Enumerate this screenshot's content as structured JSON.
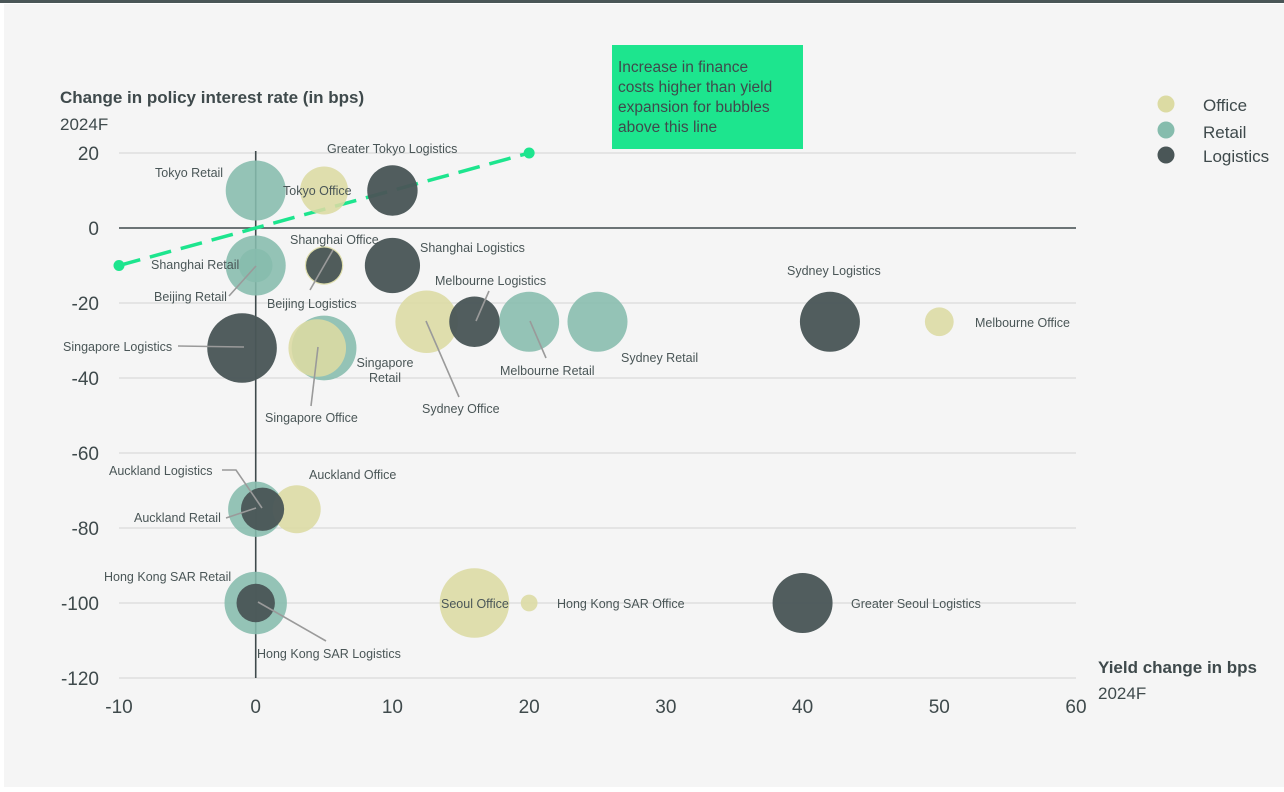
{
  "chart_data": {
    "type": "scatter",
    "y_title": "Change in policy interest rate (in bps)",
    "y_subtitle": "2024F",
    "x_title": "Yield change in bps",
    "x_subtitle": "2024F",
    "xlim": [
      -10,
      60
    ],
    "ylim": [
      -120,
      20
    ],
    "x_ticks": [
      -10,
      0,
      10,
      20,
      30,
      40,
      50,
      60
    ],
    "y_ticks": [
      20,
      0,
      -20,
      -40,
      -60,
      -80,
      -100,
      -120
    ],
    "grid": "horizontal",
    "legend_position": "top-right",
    "annotation": {
      "text_lines": [
        "Increase in finance",
        "costs higher than yield",
        "expansion for bubbles",
        "above this line"
      ],
      "color": "#1de58e"
    },
    "threshold_line": {
      "from": [
        -10,
        -10
      ],
      "to": [
        20,
        20
      ],
      "color": "#1de58e"
    },
    "series": [
      {
        "name": "Office",
        "color": "#dcdba3",
        "points": [
          {
            "label": "Tokyo Office",
            "x": 5,
            "y": 10,
            "r": 1.0
          },
          {
            "label": "Shanghai Office",
            "x": 5,
            "y": -10,
            "r": 0.8
          },
          {
            "label": "Singapore Office",
            "x": 4.5,
            "y": -32,
            "r": 1.2
          },
          {
            "label": "Sydney Office",
            "x": 12.5,
            "y": -25,
            "r": 1.3
          },
          {
            "label": "Melbourne Office",
            "x": 50,
            "y": -25,
            "r": 0.6
          },
          {
            "label": "Auckland Office",
            "x": 3,
            "y": -75,
            "r": 1.0
          },
          {
            "label": "Seoul Office",
            "x": 16,
            "y": -100,
            "r": 1.45
          },
          {
            "label": "Hong Kong SAR Office",
            "x": 20,
            "y": -100,
            "r": 0.35
          }
        ]
      },
      {
        "name": "Retail",
        "color": "#86bcad",
        "points": [
          {
            "label": "Tokyo Retail",
            "x": 0,
            "y": 10,
            "r": 1.25
          },
          {
            "label": "Shanghai Retail",
            "x": 0,
            "y": -10,
            "r": 1.25
          },
          {
            "label": "Beijing Retail",
            "x": 0,
            "y": -10,
            "r": 0.7
          },
          {
            "label": "Singapore Retail",
            "x": 5,
            "y": -32,
            "r": 1.35
          },
          {
            "label": "Melbourne Retail",
            "x": 20,
            "y": -25,
            "r": 1.25
          },
          {
            "label": "Sydney Retail",
            "x": 25,
            "y": -25,
            "r": 1.25
          },
          {
            "label": "Auckland Retail",
            "x": 0,
            "y": -75,
            "r": 1.15
          },
          {
            "label": "Hong Kong SAR Retail",
            "x": 0,
            "y": -100,
            "r": 1.3
          }
        ]
      },
      {
        "name": "Logistics",
        "color": "#4a5657",
        "points": [
          {
            "label": "Greater Tokyo Logistics",
            "x": 10,
            "y": 10,
            "r": 1.05
          },
          {
            "label": "Shanghai Logistics",
            "x": 10,
            "y": -10,
            "r": 1.15
          },
          {
            "label": "Beijing Logistics",
            "x": 5,
            "y": -10,
            "r": 0.75
          },
          {
            "label": "Singapore Logistics",
            "x": -1,
            "y": -32,
            "r": 1.45
          },
          {
            "label": "Melbourne Logistics",
            "x": 16,
            "y": -25,
            "r": 1.05
          },
          {
            "label": "Sydney Logistics",
            "x": 42,
            "y": -25,
            "r": 1.25
          },
          {
            "label": "Auckland Logistics",
            "x": 0.5,
            "y": -75,
            "r": 0.9
          },
          {
            "label": "Hong Kong SAR Logistics",
            "x": 0,
            "y": -100,
            "r": 0.8
          },
          {
            "label": "Greater Seoul Logistics",
            "x": 40,
            "y": -100,
            "r": 1.25
          }
        ]
      }
    ]
  }
}
